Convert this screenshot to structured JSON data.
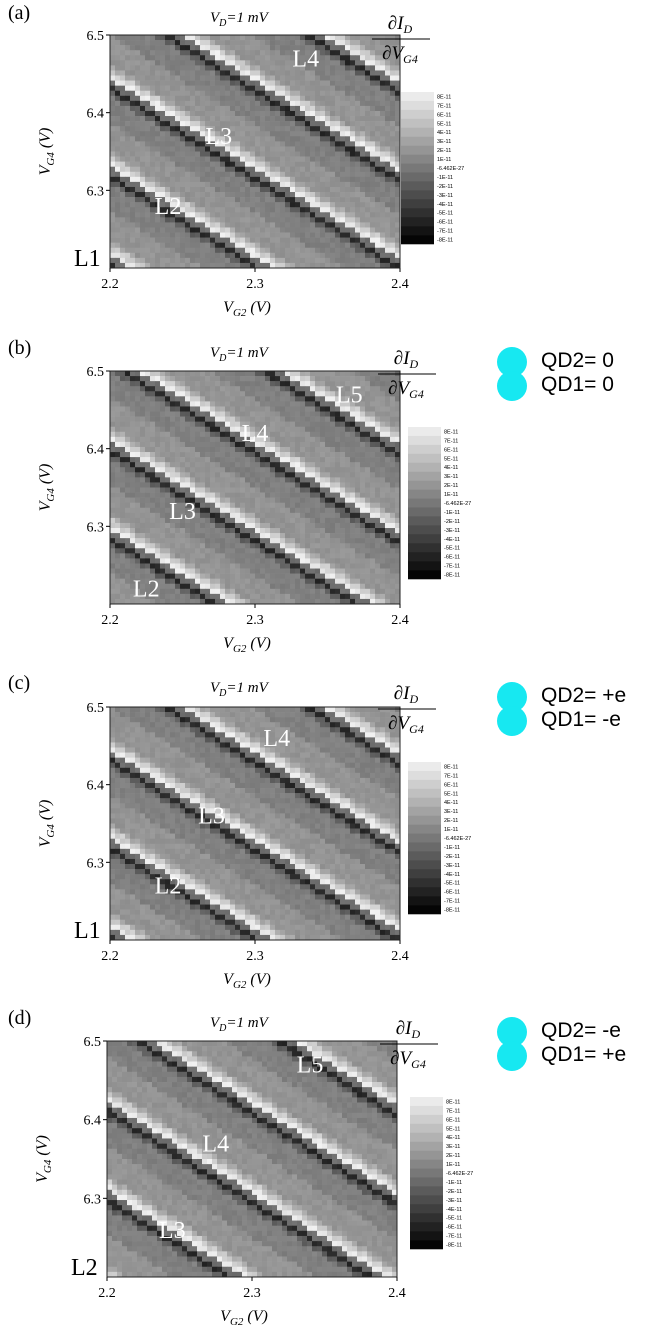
{
  "chart_data": [
    {
      "type": "heatmap",
      "panel_label": "(a)",
      "title": "V_D=1 mV",
      "xlabel": "V_G2 (V)",
      "ylabel": "V_G4 (V)",
      "x_ticks": [
        "2.2",
        "2.3",
        "2.4"
      ],
      "y_ticks": [
        "6.3",
        "6.4",
        "6.5"
      ],
      "xlim": [
        2.2,
        2.4
      ],
      "ylim": [
        6.2,
        6.5
      ],
      "colorbar_title": "∂I_D / ∂V_G4",
      "colorbar_ticks": [
        "8E-11",
        "7E-11",
        "6E-11",
        "5E-11",
        "4E-11",
        "3E-11",
        "2E-11",
        "1E-11",
        "-6.462E-27",
        "-1E-11",
        "-2E-11",
        "-3E-11",
        "-4E-11",
        "-5E-11",
        "-6E-11",
        "-7E-11",
        "-8E-11"
      ],
      "line_labels": [
        {
          "text": "L1",
          "x": 2.195,
          "y": 6.205
        },
        {
          "text": "L2",
          "x": 2.24,
          "y": 6.28
        },
        {
          "text": "L3",
          "x": 2.275,
          "y": 6.37
        },
        {
          "text": "L4",
          "x": 2.335,
          "y": 6.47
        }
      ],
      "pattern_offset": 0.0,
      "qd_labels": []
    },
    {
      "type": "heatmap",
      "panel_label": "(b)",
      "title": "V_D=1 mV",
      "xlabel": "V_G2 (V)",
      "ylabel": "V_G4 (V)",
      "x_ticks": [
        "2.2",
        "2.3",
        "2.4"
      ],
      "y_ticks": [
        "6.3",
        "6.4",
        "6.5"
      ],
      "xlim": [
        2.2,
        2.4
      ],
      "ylim": [
        6.2,
        6.5
      ],
      "colorbar_title": "∂I_D / ∂V_G4",
      "colorbar_ticks": [
        "8E-11",
        "7E-11",
        "6E-11",
        "5E-11",
        "4E-11",
        "3E-11",
        "2E-11",
        "1E-11",
        "-6.462E-27",
        "-1E-11",
        "-2E-11",
        "-3E-11",
        "-4E-11",
        "-5E-11",
        "-6E-11",
        "-7E-11",
        "-8E-11"
      ],
      "line_labels": [
        {
          "text": "L2",
          "x": 2.225,
          "y": 6.22
        },
        {
          "text": "L3",
          "x": 2.25,
          "y": 6.32
        },
        {
          "text": "L4",
          "x": 2.3,
          "y": 6.42
        },
        {
          "text": "L5",
          "x": 2.365,
          "y": 6.47
        }
      ],
      "pattern_offset": 0.05,
      "qd_labels": [
        "QD2= 0",
        "QD1= 0"
      ]
    },
    {
      "type": "heatmap",
      "panel_label": "(c)",
      "title": "V_D=1 mV",
      "xlabel": "V_G2 (V)",
      "ylabel": "V_G4 (V)",
      "x_ticks": [
        "2.2",
        "2.3",
        "2.4"
      ],
      "y_ticks": [
        "6.3",
        "6.4",
        "6.5"
      ],
      "xlim": [
        2.2,
        2.4
      ],
      "ylim": [
        6.2,
        6.5
      ],
      "colorbar_title": "∂I_D / ∂V_G4",
      "colorbar_ticks": [
        "8E-11",
        "7E-11",
        "6E-11",
        "5E-11",
        "4E-11",
        "3E-11",
        "2E-11",
        "1E-11",
        "-6.462E-27",
        "-1E-11",
        "-2E-11",
        "-3E-11",
        "-4E-11",
        "-5E-11",
        "-6E-11",
        "-7E-11",
        "-8E-11"
      ],
      "line_labels": [
        {
          "text": "L1",
          "x": 2.195,
          "y": 6.205
        },
        {
          "text": "L2",
          "x": 2.24,
          "y": 6.27
        },
        {
          "text": "L3",
          "x": 2.27,
          "y": 6.36
        },
        {
          "text": "L4",
          "x": 2.315,
          "y": 6.46
        }
      ],
      "pattern_offset": 0.0,
      "qd_labels": [
        "QD2= +e",
        "QD1= -e"
      ]
    },
    {
      "type": "heatmap",
      "panel_label": "(d)",
      "title": "V_D=1 mV",
      "xlabel": "V_G2 (V)",
      "ylabel": "V_G4 (V)",
      "x_ticks": [
        "2.2",
        "2.3",
        "2.4"
      ],
      "y_ticks": [
        "6.3",
        "6.4",
        "6.5"
      ],
      "xlim": [
        2.2,
        2.4
      ],
      "ylim": [
        6.2,
        6.5
      ],
      "colorbar_title": "∂I_D / ∂V_G4",
      "colorbar_ticks": [
        "8E-11",
        "7E-11",
        "6E-11",
        "5E-11",
        "4E-11",
        "3E-11",
        "2E-11",
        "1E-11",
        "-6.462E-27",
        "-1E-11",
        "-2E-11",
        "-3E-11",
        "-4E-11",
        "-5E-11",
        "-6E-11",
        "-7E-11",
        "-8E-11"
      ],
      "line_labels": [
        {
          "text": "L2",
          "x": 2.195,
          "y": 6.205
        },
        {
          "text": "L3",
          "x": 2.245,
          "y": 6.26
        },
        {
          "text": "L4",
          "x": 2.275,
          "y": 6.37
        },
        {
          "text": "L5",
          "x": 2.34,
          "y": 6.47
        }
      ],
      "pattern_offset": 0.03,
      "qd_labels": [
        "QD2= -e",
        "QD1= +e"
      ]
    }
  ]
}
